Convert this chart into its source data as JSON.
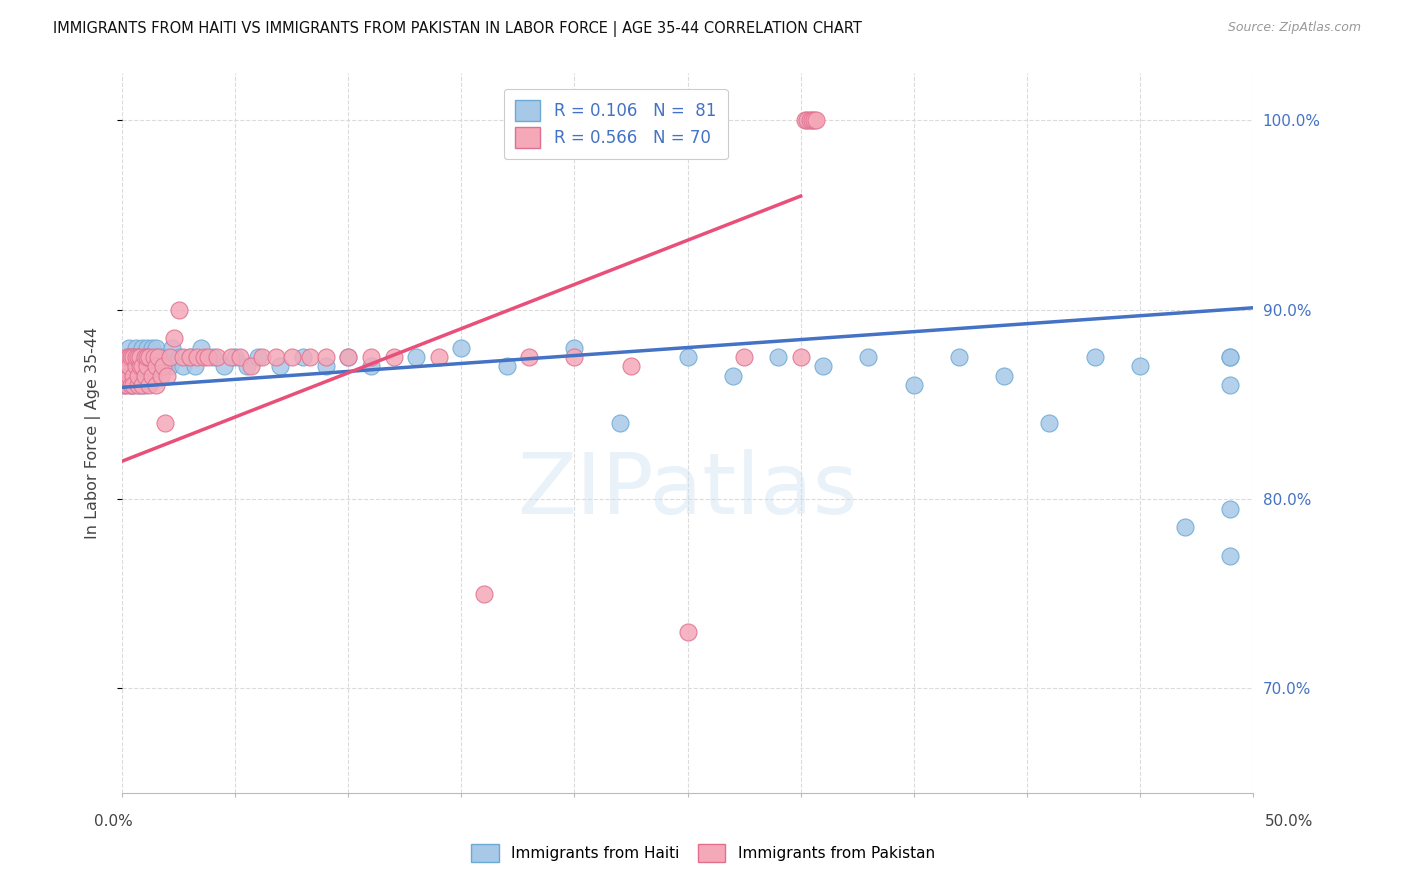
{
  "title": "IMMIGRANTS FROM HAITI VS IMMIGRANTS FROM PAKISTAN IN LABOR FORCE | AGE 35-44 CORRELATION CHART",
  "source": "Source: ZipAtlas.com",
  "ylabel": "In Labor Force | Age 35-44",
  "ytick_labels_right": [
    "100.0%",
    "90.0%",
    "80.0%",
    "70.0%"
  ],
  "ytick_values": [
    1.0,
    0.9,
    0.8,
    0.7
  ],
  "xlim": [
    0.0,
    0.5
  ],
  "ylim": [
    0.645,
    1.025
  ],
  "haiti_color": "#a8c8e8",
  "pakistan_color": "#f4a8b8",
  "haiti_edge": "#6aaad4",
  "pakistan_edge": "#e07090",
  "haiti_line_color": "#4472c4",
  "pakistan_line_color": "#e8507a",
  "legend_haiti": "R = 0.106   N =  81",
  "legend_pakistan": "R = 0.566   N = 70",
  "legend_label_haiti": "Immigrants from Haiti",
  "legend_label_pakistan": "Immigrants from Pakistan",
  "watermark": "ZIPatlas",
  "grid_color": "#d8d8d8",
  "haiti_trend": [
    0.0,
    0.859,
    0.5,
    0.901
  ],
  "pakistan_trend": [
    0.0,
    0.82,
    0.3,
    0.96
  ],
  "haiti_x": [
    0.001,
    0.001,
    0.002,
    0.002,
    0.003,
    0.003,
    0.003,
    0.004,
    0.004,
    0.004,
    0.005,
    0.005,
    0.005,
    0.006,
    0.006,
    0.006,
    0.007,
    0.007,
    0.007,
    0.008,
    0.008,
    0.009,
    0.009,
    0.009,
    0.01,
    0.01,
    0.01,
    0.011,
    0.011,
    0.012,
    0.012,
    0.013,
    0.013,
    0.014,
    0.014,
    0.015,
    0.015,
    0.016,
    0.017,
    0.018,
    0.019,
    0.02,
    0.021,
    0.022,
    0.025,
    0.027,
    0.03,
    0.032,
    0.035,
    0.04,
    0.045,
    0.05,
    0.055,
    0.06,
    0.07,
    0.08,
    0.09,
    0.1,
    0.11,
    0.13,
    0.15,
    0.17,
    0.2,
    0.22,
    0.25,
    0.27,
    0.29,
    0.31,
    0.33,
    0.35,
    0.37,
    0.39,
    0.41,
    0.43,
    0.45,
    0.47,
    0.49,
    0.49,
    0.49,
    0.49,
    0.49
  ],
  "haiti_y": [
    0.87,
    0.86,
    0.875,
    0.865,
    0.875,
    0.865,
    0.88,
    0.87,
    0.86,
    0.875,
    0.87,
    0.86,
    0.875,
    0.87,
    0.865,
    0.88,
    0.875,
    0.86,
    0.87,
    0.875,
    0.865,
    0.87,
    0.88,
    0.86,
    0.875,
    0.87,
    0.86,
    0.88,
    0.875,
    0.87,
    0.875,
    0.87,
    0.88,
    0.875,
    0.865,
    0.87,
    0.88,
    0.875,
    0.87,
    0.875,
    0.87,
    0.875,
    0.87,
    0.88,
    0.875,
    0.87,
    0.875,
    0.87,
    0.88,
    0.875,
    0.87,
    0.875,
    0.87,
    0.875,
    0.87,
    0.875,
    0.87,
    0.875,
    0.87,
    0.875,
    0.88,
    0.87,
    0.88,
    0.84,
    0.875,
    0.865,
    0.875,
    0.87,
    0.875,
    0.86,
    0.875,
    0.865,
    0.84,
    0.875,
    0.87,
    0.785,
    0.875,
    0.86,
    0.795,
    0.875,
    0.77
  ],
  "pakistan_x": [
    0.001,
    0.001,
    0.002,
    0.002,
    0.003,
    0.003,
    0.003,
    0.004,
    0.004,
    0.005,
    0.005,
    0.005,
    0.006,
    0.006,
    0.007,
    0.007,
    0.007,
    0.008,
    0.008,
    0.009,
    0.009,
    0.01,
    0.01,
    0.011,
    0.011,
    0.012,
    0.012,
    0.013,
    0.014,
    0.015,
    0.015,
    0.016,
    0.017,
    0.018,
    0.019,
    0.02,
    0.021,
    0.023,
    0.025,
    0.027,
    0.03,
    0.033,
    0.036,
    0.038,
    0.042,
    0.048,
    0.052,
    0.057,
    0.062,
    0.068,
    0.075,
    0.083,
    0.09,
    0.1,
    0.11,
    0.12,
    0.14,
    0.16,
    0.18,
    0.2,
    0.225,
    0.25,
    0.275,
    0.3,
    0.302,
    0.303,
    0.304,
    0.305,
    0.306,
    0.307
  ],
  "pakistan_y": [
    0.87,
    0.86,
    0.875,
    0.86,
    0.875,
    0.865,
    0.87,
    0.86,
    0.875,
    0.865,
    0.875,
    0.86,
    0.87,
    0.875,
    0.86,
    0.875,
    0.865,
    0.87,
    0.875,
    0.86,
    0.87,
    0.875,
    0.865,
    0.87,
    0.875,
    0.86,
    0.875,
    0.865,
    0.875,
    0.86,
    0.87,
    0.875,
    0.865,
    0.87,
    0.84,
    0.865,
    0.875,
    0.885,
    0.9,
    0.875,
    0.875,
    0.875,
    0.875,
    0.875,
    0.875,
    0.875,
    0.875,
    0.87,
    0.875,
    0.875,
    0.875,
    0.875,
    0.875,
    0.875,
    0.875,
    0.875,
    0.875,
    0.75,
    0.875,
    0.875,
    0.87,
    0.73,
    0.875,
    0.875,
    1.0,
    1.0,
    1.0,
    1.0,
    1.0,
    1.0
  ]
}
